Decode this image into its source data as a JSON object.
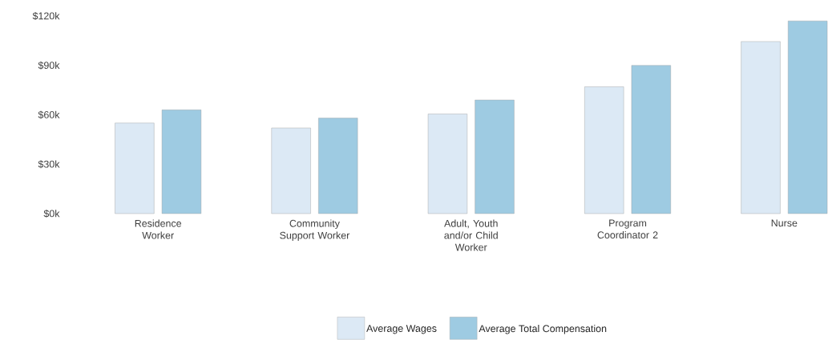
{
  "chart_data": {
    "type": "bar",
    "categories": [
      "Residence Worker",
      "Community Support Worker",
      "Adult, Youth and/or Child Worker",
      "Program Coordinator 2",
      "Nurse"
    ],
    "series": [
      {
        "name": "Average Wages",
        "color": "#dce9f5",
        "values": [
          55,
          52,
          60.5,
          77,
          104.5
        ]
      },
      {
        "name": "Average Total Compensation",
        "color": "#9ecbe2",
        "values": [
          63,
          58,
          69,
          90,
          117
        ]
      }
    ],
    "ylim": [
      0,
      120
    ],
    "yticks": [
      {
        "value": 0,
        "label": "$0k"
      },
      {
        "value": 30,
        "label": "$30k"
      },
      {
        "value": 60,
        "label": "$60k"
      },
      {
        "value": 90,
        "label": "$90k"
      },
      {
        "value": 120,
        "label": "$120k"
      }
    ],
    "legend": "bottom"
  }
}
